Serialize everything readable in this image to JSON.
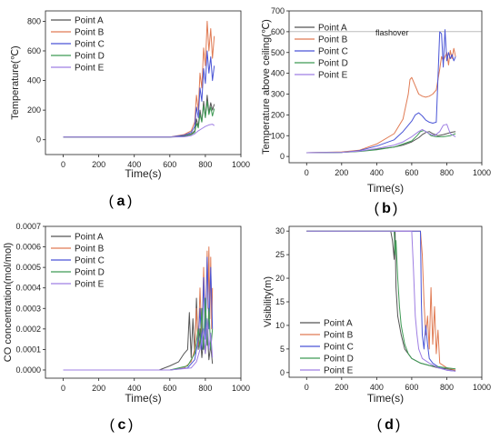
{
  "colors": {
    "point_a": "#555555",
    "point_b": "#e07b54",
    "point_c": "#4a55d6",
    "point_d": "#3f9a55",
    "point_e": "#9f7fe3",
    "axis": "#222222",
    "flashover_line": "#777777"
  },
  "chart_data": [
    {
      "panel": "(a)",
      "type": "line",
      "xlabel": "Time(s)",
      "ylabel": "Temperature(℃)",
      "xlim": [
        -100,
        1000
      ],
      "ylim": [
        -100,
        870
      ],
      "xticks": [
        0,
        200,
        400,
        600,
        800,
        1000
      ],
      "yticks": [
        0,
        200,
        400,
        600,
        800
      ],
      "legend": "top-left",
      "series": [
        {
          "name": "Point A",
          "color_key": "point_a",
          "x": [
            0,
            600,
            680,
            720,
            740,
            750,
            760,
            770,
            780,
            790,
            800,
            810,
            820,
            830,
            840,
            850
          ],
          "y": [
            18,
            18,
            25,
            40,
            60,
            140,
            90,
            200,
            120,
            260,
            150,
            300,
            180,
            250,
            200,
            240
          ]
        },
        {
          "name": "Point B",
          "color_key": "point_b",
          "x": [
            0,
            600,
            680,
            720,
            740,
            750,
            760,
            770,
            780,
            790,
            800,
            810,
            820,
            830,
            840,
            850
          ],
          "y": [
            18,
            18,
            35,
            60,
            120,
            300,
            200,
            450,
            350,
            620,
            500,
            800,
            600,
            750,
            550,
            700
          ]
        },
        {
          "name": "Point C",
          "color_key": "point_c",
          "x": [
            0,
            600,
            680,
            720,
            740,
            750,
            760,
            770,
            780,
            790,
            800,
            810,
            820,
            830,
            840,
            850
          ],
          "y": [
            18,
            18,
            30,
            50,
            90,
            220,
            150,
            350,
            260,
            480,
            380,
            600,
            450,
            560,
            400,
            500
          ]
        },
        {
          "name": "Point D",
          "color_key": "point_d",
          "x": [
            0,
            600,
            680,
            720,
            740,
            750,
            760,
            770,
            780,
            790,
            800,
            810,
            820,
            830,
            840,
            850
          ],
          "y": [
            18,
            18,
            22,
            35,
            50,
            110,
            80,
            170,
            120,
            230,
            150,
            260,
            170,
            220,
            160,
            210
          ]
        },
        {
          "name": "Point E",
          "color_key": "point_e",
          "x": [
            0,
            600,
            680,
            720,
            740,
            760,
            780,
            800,
            820,
            840,
            850
          ],
          "y": [
            18,
            18,
            20,
            28,
            40,
            60,
            75,
            90,
            100,
            105,
            95
          ]
        }
      ]
    },
    {
      "panel": "(b)",
      "type": "line",
      "xlabel": "Time(s)",
      "ylabel": "Temperature above ceiling(℃)",
      "xlim": [
        -100,
        1000
      ],
      "ylim": [
        -30,
        700
      ],
      "xticks": [
        0,
        200,
        400,
        600,
        800,
        1000
      ],
      "yticks": [
        0,
        100,
        200,
        300,
        400,
        500,
        600,
        700
      ],
      "legend": "top-left",
      "annotation": {
        "text": "flashover",
        "y": 600
      },
      "series": [
        {
          "name": "Point A",
          "color_key": "point_a",
          "x": [
            0,
            200,
            300,
            400,
            500,
            550,
            600,
            640,
            660,
            680,
            700,
            720,
            750,
            780,
            800,
            820,
            850
          ],
          "y": [
            18,
            20,
            25,
            35,
            45,
            55,
            70,
            90,
            105,
            115,
            120,
            110,
            100,
            105,
            110,
            115,
            120
          ]
        },
        {
          "name": "Point B",
          "color_key": "point_b",
          "x": [
            0,
            200,
            300,
            400,
            500,
            550,
            580,
            590,
            600,
            620,
            640,
            660,
            680,
            700,
            720,
            740,
            760,
            770,
            780,
            800,
            810,
            820,
            830,
            840,
            850
          ],
          "y": [
            18,
            22,
            30,
            60,
            110,
            180,
            300,
            370,
            380,
            340,
            300,
            290,
            285,
            290,
            300,
            320,
            420,
            480,
            460,
            500,
            440,
            510,
            470,
            520,
            480
          ]
        },
        {
          "name": "Point C",
          "color_key": "point_c",
          "x": [
            0,
            200,
            300,
            400,
            500,
            550,
            600,
            620,
            640,
            660,
            680,
            700,
            720,
            740,
            760,
            770,
            780,
            790,
            800,
            810,
            820,
            830,
            840,
            850
          ],
          "y": [
            18,
            20,
            28,
            50,
            80,
            120,
            170,
            200,
            210,
            195,
            175,
            165,
            160,
            165,
            600,
            590,
            430,
            610,
            460,
            500,
            470,
            490,
            460,
            480
          ]
        },
        {
          "name": "Point D",
          "color_key": "point_d",
          "x": [
            0,
            200,
            300,
            400,
            500,
            550,
            600,
            630,
            650,
            670,
            690,
            710,
            740,
            780,
            820,
            850
          ],
          "y": [
            18,
            20,
            24,
            32,
            45,
            60,
            75,
            100,
            120,
            125,
            115,
            100,
            95,
            95,
            100,
            110
          ]
        },
        {
          "name": "Point E",
          "color_key": "point_e",
          "x": [
            0,
            200,
            300,
            400,
            500,
            550,
            600,
            640,
            660,
            680,
            700,
            730,
            760,
            780,
            800,
            820,
            850
          ],
          "y": [
            18,
            20,
            26,
            38,
            55,
            70,
            95,
            120,
            130,
            120,
            110,
            100,
            120,
            150,
            155,
            110,
            95
          ]
        }
      ]
    },
    {
      "panel": "(c)",
      "type": "line",
      "xlabel": "Time(s)",
      "ylabel": "CO concentration(mol/mol)",
      "xlim": [
        -100,
        1000
      ],
      "ylim": [
        -4e-05,
        0.0007
      ],
      "xticks": [
        0,
        200,
        400,
        600,
        800,
        1000
      ],
      "yticks": [
        0.0,
        0.0001,
        0.0002,
        0.0003,
        0.0004,
        0.0005,
        0.0006,
        0.0007
      ],
      "ytick_labels": [
        "0.0000",
        "0.0001",
        "0.0002",
        "0.0003",
        "0.0004",
        "0.0005",
        "0.0006",
        "0.0007"
      ],
      "legend": "top-left",
      "series": [
        {
          "name": "Point A",
          "color_key": "point_a",
          "x": [
            0,
            540,
            600,
            650,
            680,
            700,
            710,
            720,
            730,
            740,
            750,
            760,
            770,
            780,
            790,
            800,
            810,
            820,
            830,
            840
          ],
          "y": [
            0,
            0,
            2e-05,
            4e-05,
            8e-05,
            0.0001,
            0.00028,
            6e-05,
            0.00025,
            8e-05,
            0.00035,
            0.0001,
            0.0002,
            6e-05,
            0.00015,
            8e-05,
            0.0002,
            5e-05,
            0.00012,
            3e-05
          ]
        },
        {
          "name": "Point B",
          "color_key": "point_b",
          "x": [
            0,
            600,
            680,
            720,
            740,
            750,
            760,
            770,
            780,
            790,
            800,
            810,
            815,
            820,
            825,
            830,
            835,
            840
          ],
          "y": [
            0,
            0,
            1e-05,
            4e-05,
            0.0001,
            0.0003,
            0.00012,
            0.0004,
            0.00015,
            0.0005,
            0.0002,
            0.00058,
            0.0003,
            0.0006,
            0.00025,
            0.00055,
            0.0002,
            0.0004
          ]
        },
        {
          "name": "Point C",
          "color_key": "point_c",
          "x": [
            0,
            600,
            700,
            740,
            760,
            770,
            780,
            790,
            800,
            810,
            820,
            830,
            840
          ],
          "y": [
            0,
            0,
            1e-05,
            5e-05,
            0.00015,
            0.0003,
            0.0001,
            0.00045,
            0.00015,
            0.00055,
            0.0002,
            0.0005,
            0.0002
          ]
        },
        {
          "name": "Point D",
          "color_key": "point_d",
          "x": [
            0,
            600,
            700,
            740,
            760,
            770,
            780,
            790,
            800,
            810,
            820,
            830,
            840
          ],
          "y": [
            0,
            0,
            2e-05,
            8e-05,
            0.0002,
            0.0001,
            0.0003,
            0.0001,
            0.00035,
            0.00012,
            0.0003,
            0.0001,
            0.0002
          ]
        },
        {
          "name": "Point E",
          "color_key": "point_e",
          "x": [
            0,
            600,
            720,
            750,
            770,
            790,
            800,
            810,
            820,
            830,
            840
          ],
          "y": [
            0,
            0,
            1e-05,
            4e-05,
            0.0001,
            0.0002,
            8e-05,
            0.00025,
            0.0001,
            0.00018,
            6e-05
          ]
        }
      ]
    },
    {
      "panel": "(d)",
      "type": "line",
      "xlabel": "Time(s)",
      "ylabel": "Visibility(m)",
      "xlim": [
        -100,
        1000
      ],
      "ylim": [
        -1,
        31
      ],
      "xticks": [
        0,
        200,
        400,
        600,
        800,
        1000
      ],
      "yticks": [
        0,
        5,
        10,
        15,
        20,
        25,
        30
      ],
      "legend": "bottom-center",
      "series": [
        {
          "name": "Point A",
          "color_key": "point_a",
          "x": [
            0,
            480,
            490,
            500,
            505,
            510,
            520,
            540,
            560,
            600,
            650,
            700,
            750,
            800,
            850
          ],
          "y": [
            30,
            30,
            28,
            24,
            30,
            18,
            12,
            8,
            5,
            3,
            2,
            1.5,
            1,
            0.8,
            0.5
          ]
        },
        {
          "name": "Point B",
          "color_key": "point_b",
          "x": [
            0,
            650,
            660,
            670,
            680,
            690,
            700,
            710,
            720,
            730,
            740,
            750,
            760,
            800,
            850
          ],
          "y": [
            30,
            30,
            25,
            15,
            8,
            12,
            5,
            18,
            6,
            14,
            4,
            9,
            2,
            1,
            0.5
          ]
        },
        {
          "name": "Point C",
          "color_key": "point_c",
          "x": [
            0,
            650,
            655,
            660,
            670,
            680,
            690,
            700,
            720,
            740,
            760,
            800,
            850
          ],
          "y": [
            30,
            30,
            15,
            8,
            5,
            10,
            6,
            3,
            2,
            1.5,
            1,
            0.5,
            0.3
          ]
        },
        {
          "name": "Point D",
          "color_key": "point_d",
          "x": [
            0,
            500,
            505,
            510,
            520,
            530,
            540,
            560,
            580,
            600,
            650,
            700,
            800,
            850
          ],
          "y": [
            30,
            30,
            25,
            28,
            20,
            14,
            10,
            6,
            4,
            3,
            2,
            1.5,
            1,
            0.8
          ]
        },
        {
          "name": "Point E",
          "color_key": "point_e",
          "x": [
            0,
            600,
            610,
            620,
            630,
            640,
            660,
            700,
            750,
            800,
            850
          ],
          "y": [
            30,
            30,
            22,
            12,
            8,
            5,
            3,
            2,
            1,
            0.5,
            0.3
          ]
        }
      ]
    }
  ],
  "panels": [
    {
      "label_letter": "a"
    },
    {
      "label_letter": "b"
    },
    {
      "label_letter": "c"
    },
    {
      "label_letter": "d"
    }
  ]
}
